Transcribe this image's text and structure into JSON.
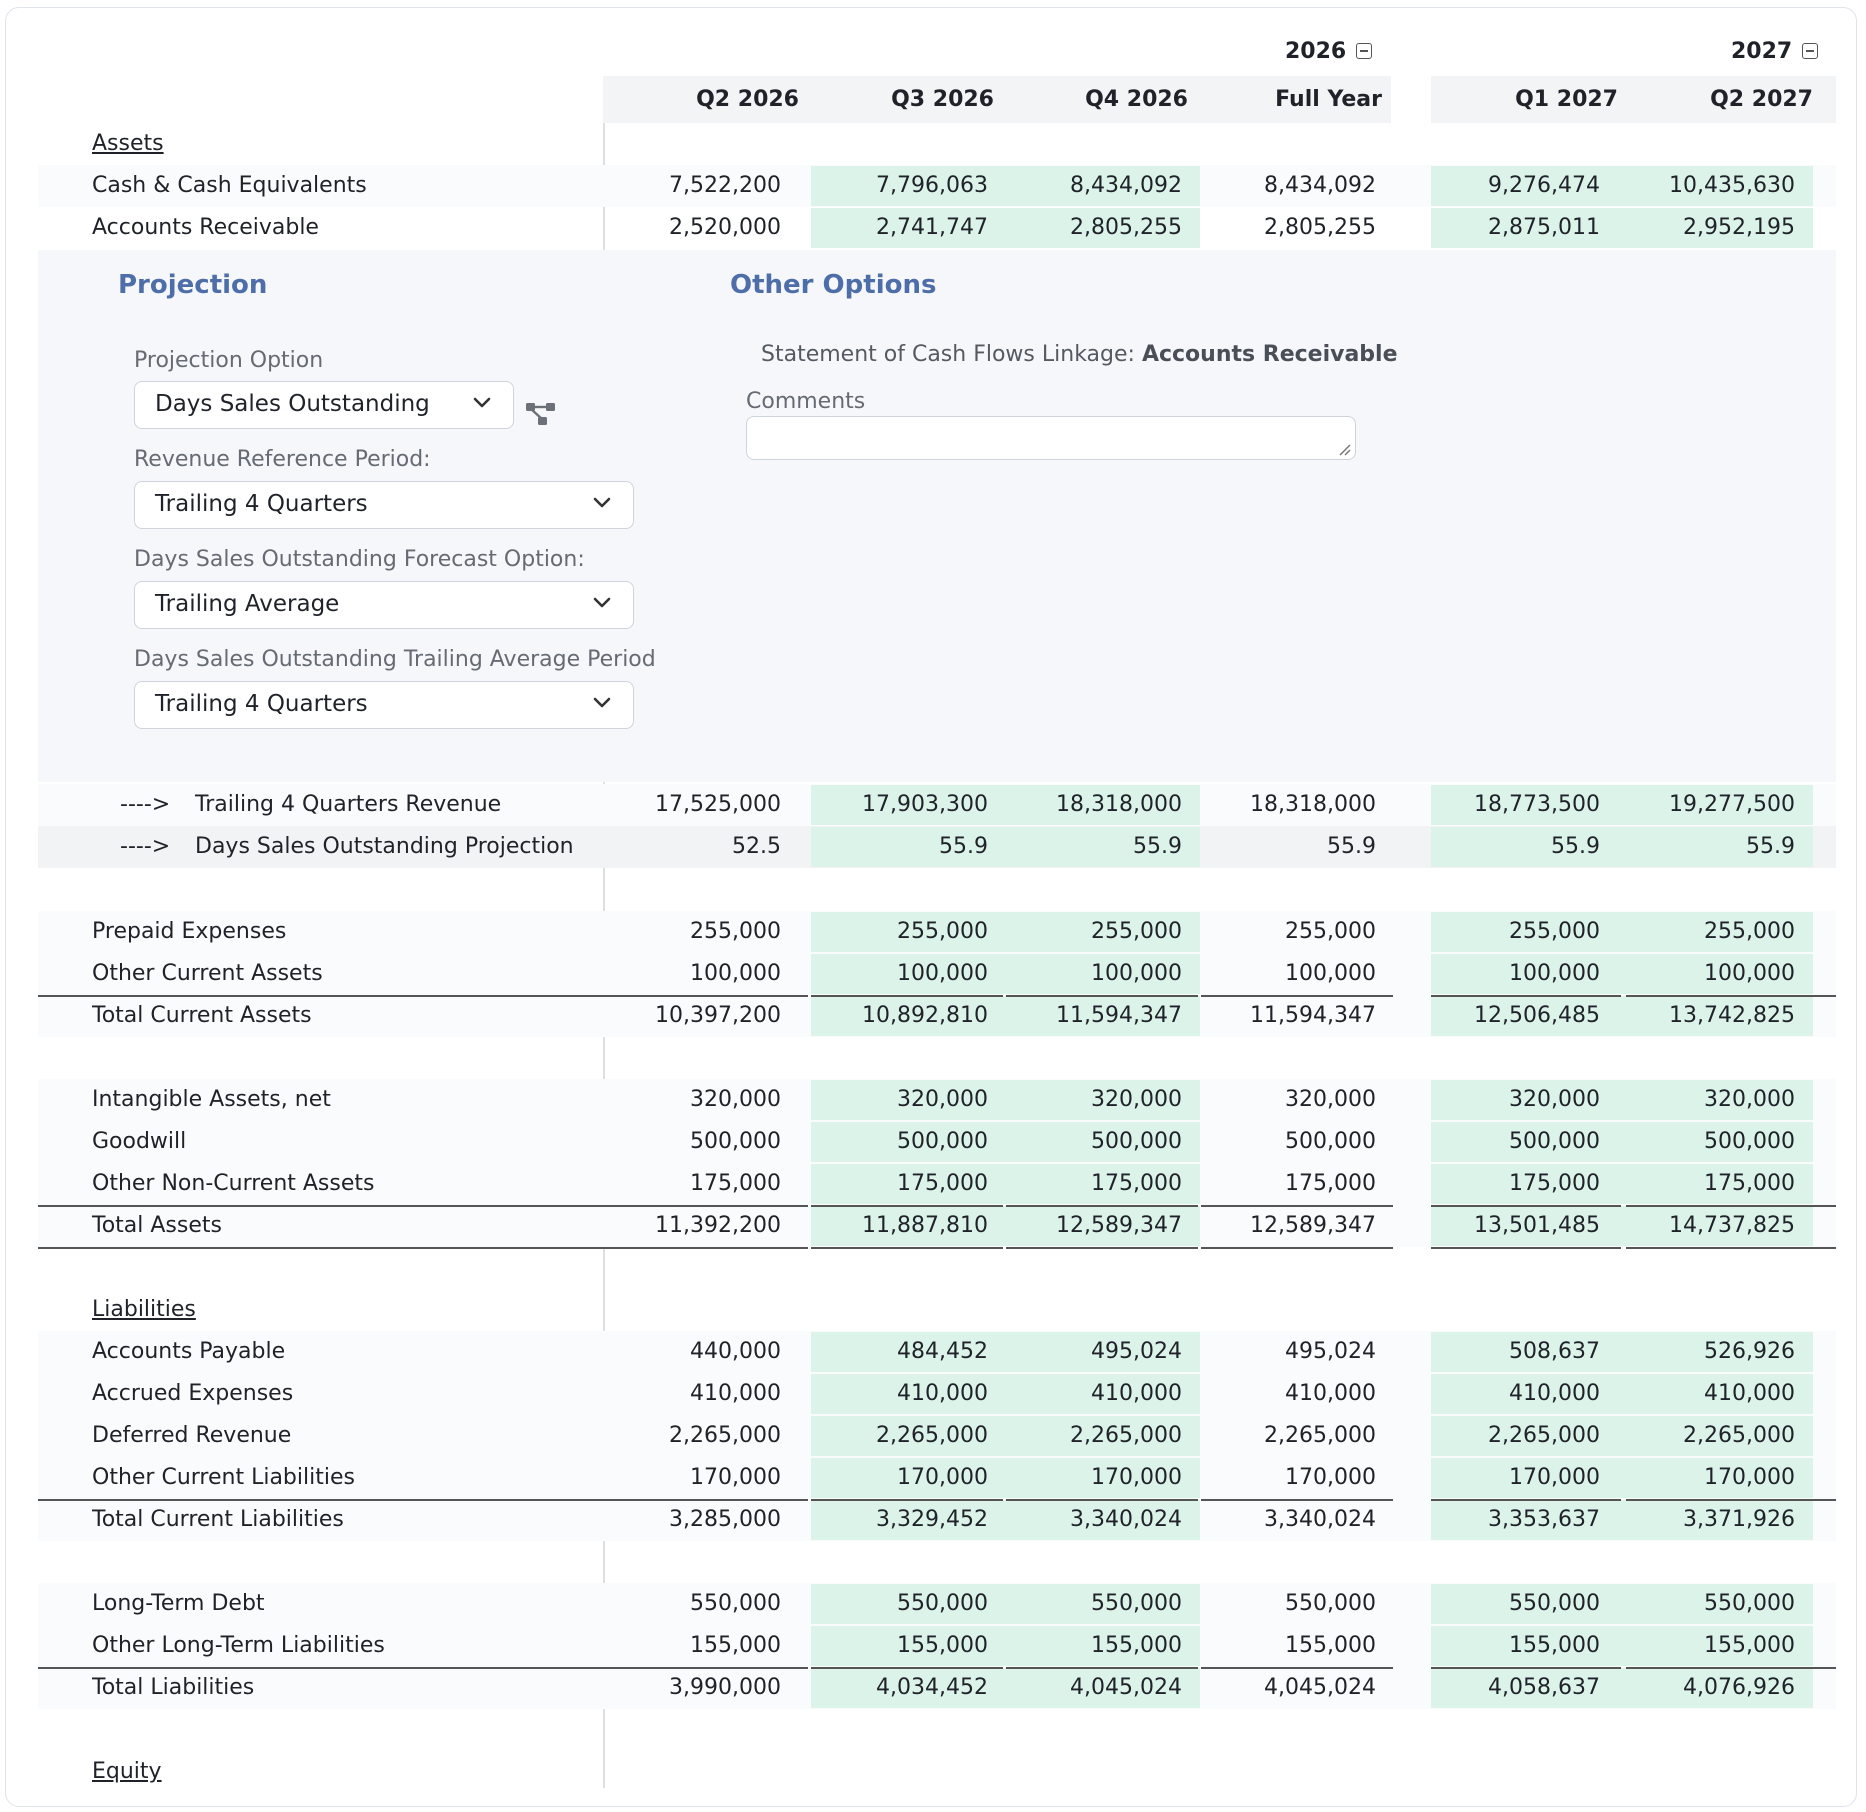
{
  "years": [
    {
      "label": "2026"
    },
    {
      "label": "2027"
    }
  ],
  "columns": [
    "Q2 2026",
    "Q3 2026",
    "Q4 2026",
    "Full Year",
    "Q1 2027",
    "Q2 2027"
  ],
  "rows_top": [
    {
      "label": "Assets",
      "header": true
    },
    {
      "label": "Cash & Cash Equivalents",
      "values": [
        "7,522,200",
        "7,796,063",
        "8,434,092",
        "8,434,092",
        "9,276,474",
        "10,435,630"
      ]
    },
    {
      "label": "Accounts Receivable",
      "values": [
        "2,520,000",
        "2,741,747",
        "2,805,255",
        "2,805,255",
        "2,875,011",
        "2,952,195"
      ]
    }
  ],
  "panel": {
    "projection_title": "Projection",
    "other_title": "Other Options",
    "projection_option_label": "Projection Option",
    "projection_option_value": "Days Sales Outstanding",
    "revenue_period_label": "Revenue Reference Period:",
    "revenue_period_value": "Trailing 4 Quarters",
    "dso_forecast_label": "Days Sales Outstanding Forecast Option:",
    "dso_forecast_value": "Trailing Average",
    "dso_avg_label": "Days Sales Outstanding Trailing Average Period",
    "dso_avg_value": "Trailing 4 Quarters",
    "linkage_label": "Statement of Cash Flows Linkage:",
    "linkage_value": "Accounts Receivable",
    "comments_label": "Comments",
    "comments_value": ""
  },
  "sub_rows": [
    {
      "arrow": "---->",
      "label": "Trailing 4 Quarters Revenue",
      "values": [
        "17,525,000",
        "17,903,300",
        "18,318,000",
        "18,318,000",
        "18,773,500",
        "19,277,500"
      ]
    },
    {
      "arrow": "---->",
      "label": "Days Sales Outstanding Projection",
      "values": [
        "52.5",
        "55.9",
        "55.9",
        "55.9",
        "55.9",
        "55.9"
      ]
    }
  ],
  "rows_main": [
    {
      "label": "Prepaid Expenses",
      "values": [
        "255,000",
        "255,000",
        "255,000",
        "255,000",
        "255,000",
        "255,000"
      ]
    },
    {
      "label": "Other Current Assets",
      "values": [
        "100,000",
        "100,000",
        "100,000",
        "100,000",
        "100,000",
        "100,000"
      ]
    },
    {
      "label": "Total Current Assets",
      "values": [
        "10,397,200",
        "10,892,810",
        "11,594,347",
        "11,594,347",
        "12,506,485",
        "13,742,825"
      ]
    },
    {
      "label": "Intangible Assets, net",
      "values": [
        "320,000",
        "320,000",
        "320,000",
        "320,000",
        "320,000",
        "320,000"
      ]
    },
    {
      "label": "Goodwill",
      "values": [
        "500,000",
        "500,000",
        "500,000",
        "500,000",
        "500,000",
        "500,000"
      ]
    },
    {
      "label": "Other Non-Current Assets",
      "values": [
        "175,000",
        "175,000",
        "175,000",
        "175,000",
        "175,000",
        "175,000"
      ]
    },
    {
      "label": "Total Assets",
      "values": [
        "11,392,200",
        "11,887,810",
        "12,589,347",
        "12,589,347",
        "13,501,485",
        "14,737,825"
      ]
    },
    {
      "label": "Liabilities",
      "header": true
    },
    {
      "label": "Accounts Payable",
      "values": [
        "440,000",
        "484,452",
        "495,024",
        "495,024",
        "508,637",
        "526,926"
      ]
    },
    {
      "label": "Accrued Expenses",
      "values": [
        "410,000",
        "410,000",
        "410,000",
        "410,000",
        "410,000",
        "410,000"
      ]
    },
    {
      "label": "Deferred Revenue",
      "values": [
        "2,265,000",
        "2,265,000",
        "2,265,000",
        "2,265,000",
        "2,265,000",
        "2,265,000"
      ]
    },
    {
      "label": "Other Current Liabilities",
      "values": [
        "170,000",
        "170,000",
        "170,000",
        "170,000",
        "170,000",
        "170,000"
      ]
    },
    {
      "label": "Total Current Liabilities",
      "values": [
        "3,285,000",
        "3,329,452",
        "3,340,024",
        "3,340,024",
        "3,353,637",
        "3,371,926"
      ]
    },
    {
      "label": "Long-Term Debt",
      "values": [
        "550,000",
        "550,000",
        "550,000",
        "550,000",
        "550,000",
        "550,000"
      ]
    },
    {
      "label": "Other Long-Term Liabilities",
      "values": [
        "155,000",
        "155,000",
        "155,000",
        "155,000",
        "155,000",
        "155,000"
      ]
    },
    {
      "label": "Total Liabilities",
      "values": [
        "3,990,000",
        "4,034,452",
        "4,045,024",
        "4,045,024",
        "4,058,637",
        "4,076,926"
      ]
    },
    {
      "label": "Equity",
      "header": true
    }
  ],
  "colors": {
    "projected_cell": "#dcf3ea",
    "selected": "#dce9fa",
    "accent": "#4d6ea8"
  }
}
